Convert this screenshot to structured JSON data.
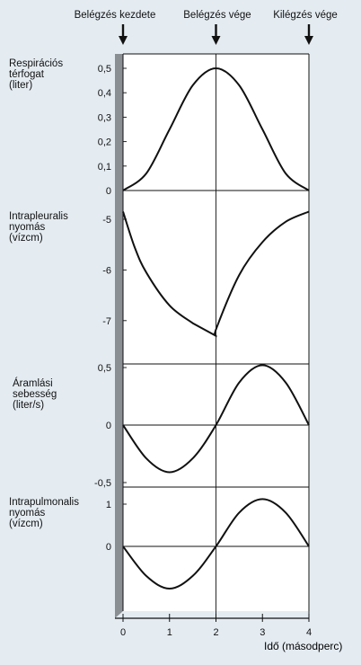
{
  "events": {
    "inspiration_start": "Belégzés kezdete",
    "inspiration_end": "Belégzés vége",
    "expiration_end": "Kilégzés vége",
    "times": [
      0,
      2,
      4
    ]
  },
  "xaxis": {
    "label": "Idő (másodperc)",
    "ticks": [
      "0",
      "1",
      "2",
      "3",
      "4"
    ],
    "range": [
      0,
      4
    ]
  },
  "colors": {
    "background": "#e4ecf2",
    "plot": "#ffffff",
    "curve": "#111111",
    "shadow": "#8a8f94"
  },
  "chart_data": [
    {
      "type": "line",
      "id": "volume",
      "label_lines": [
        "Respirációs",
        "térfogat",
        "(liter)"
      ],
      "ticks": [
        "0,5",
        "0,4",
        "0,3",
        "0,2",
        "0,1",
        "0"
      ],
      "tick_values": [
        0.5,
        0.4,
        0.3,
        0.2,
        0.1,
        0
      ],
      "ylim": [
        0,
        0.5
      ],
      "x": [
        0,
        0.5,
        1,
        1.5,
        2,
        2.5,
        3,
        3.5,
        4
      ],
      "y": [
        0,
        0.07,
        0.25,
        0.43,
        0.5,
        0.43,
        0.25,
        0.07,
        0
      ]
    },
    {
      "type": "line",
      "id": "pleural",
      "label_lines": [
        "Intrapleuralis",
        "nyomás",
        "(vízcm)"
      ],
      "ticks": [
        "-5",
        "-6",
        "-7"
      ],
      "tick_values": [
        -5,
        -6,
        -7
      ],
      "ylim": [
        -7.6,
        -4.8
      ],
      "x": [
        0,
        0.25,
        0.5,
        1,
        1.5,
        2,
        2.01,
        2.5,
        3,
        3.5,
        4
      ],
      "y": [
        -4.85,
        -5.55,
        -6.05,
        -6.7,
        -7.05,
        -7.3,
        -7.15,
        -6.1,
        -5.45,
        -5.05,
        -4.85
      ]
    },
    {
      "type": "line",
      "id": "airflow",
      "label_lines": [
        "Áramlási",
        "sebesség",
        "(liter/s)"
      ],
      "ticks": [
        "0,5",
        "0",
        "-0,5"
      ],
      "tick_values": [
        0.5,
        0,
        -0.5
      ],
      "ylim": [
        -0.62,
        0.62
      ],
      "x": [
        0,
        0.5,
        1,
        1.5,
        2,
        2.5,
        3,
        3.5,
        4
      ],
      "y": [
        0,
        -0.29,
        -0.41,
        -0.29,
        0,
        0.37,
        0.52,
        0.37,
        0
      ]
    },
    {
      "type": "line",
      "id": "alveolar",
      "label_lines": [
        "Intrapulmonalis",
        "nyomás",
        "(vízcm)"
      ],
      "ticks": [
        "1",
        "0"
      ],
      "tick_values": [
        1,
        0
      ],
      "ylim": [
        -1.25,
        1.6
      ],
      "x": [
        0,
        0.5,
        1,
        1.5,
        2,
        2.5,
        3,
        3.5,
        4
      ],
      "y": [
        0,
        -0.7,
        -1,
        -0.7,
        0,
        0.8,
        1.12,
        0.8,
        0
      ]
    }
  ]
}
